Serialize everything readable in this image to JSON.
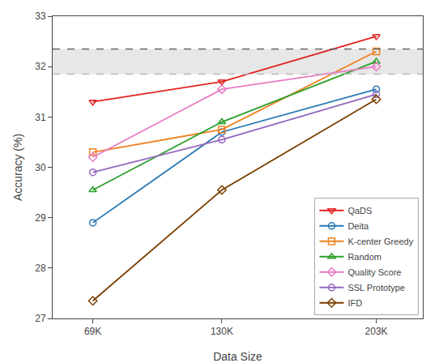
{
  "chart_data": {
    "type": "line",
    "xlabel": "Data Size",
    "ylabel": "Accuracy (%)",
    "x": [
      69,
      130,
      203
    ],
    "series": [
      {
        "name": "QaDS",
        "color": "#e32222",
        "marker": "triangle-down",
        "values": [
          31.3,
          31.7,
          32.6
        ]
      },
      {
        "name": "Deita",
        "color": "#2878b4",
        "marker": "circle",
        "values": [
          28.9,
          30.7,
          31.55
        ]
      },
      {
        "name": "K-center Greedy",
        "color": "#f08020",
        "marker": "square",
        "values": [
          30.3,
          30.75,
          32.3
        ]
      },
      {
        "name": "Random",
        "color": "#2ca02c",
        "marker": "triangle-up",
        "values": [
          29.55,
          30.9,
          32.1
        ]
      },
      {
        "name": "Quality Score",
        "color": "#e87cc3",
        "marker": "diamond",
        "values": [
          30.2,
          31.55,
          32.0
        ]
      },
      {
        "name": "SSL Prototype",
        "color": "#9467bd",
        "marker": "circle",
        "values": [
          29.9,
          30.55,
          31.45
        ]
      },
      {
        "name": "IFD",
        "color": "#7b3f00",
        "marker": "diamond",
        "values": [
          27.35,
          29.55,
          31.35
        ]
      }
    ],
    "hlines": [
      {
        "y": 32.35,
        "color": "#666666",
        "line_style": "dashed"
      },
      {
        "y": 31.85,
        "color": "#bbbbbb",
        "line_style": "dashed"
      }
    ],
    "hband": {
      "bottom": 31.85,
      "top": 32.35,
      "color": "lightgray"
    },
    "xlim": [
      50,
      225
    ],
    "xticks": [
      {
        "value": 69,
        "label": "69K"
      },
      {
        "value": 130,
        "label": "130K"
      },
      {
        "value": 203,
        "label": "203K"
      }
    ],
    "ylim": [
      27.0,
      33.0
    ],
    "yticks": [
      27,
      28,
      29,
      30,
      31,
      32,
      33
    ],
    "grid": false,
    "legend": "lower right"
  }
}
